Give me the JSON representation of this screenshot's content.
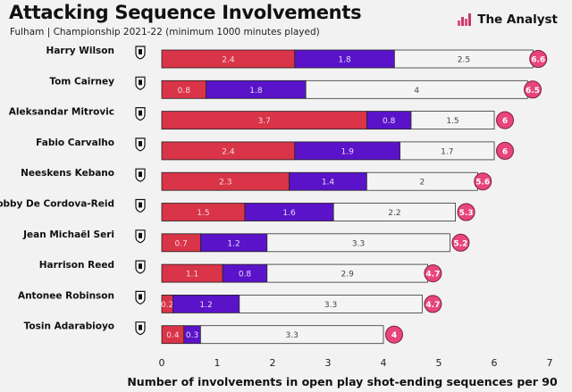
{
  "header": {
    "title": "Attacking Sequence Involvements",
    "subtitle": "Fulham | Championship 2021-22 (minimum 1000 minutes played)",
    "brand": "The Analyst"
  },
  "colors": {
    "segment1": "#d93448",
    "segment2": "#5a13c8",
    "segment3": "#f4f4f4",
    "total_badge": "#e8457e",
    "badge_border": "#7a1f3d"
  },
  "chart_data": {
    "type": "bar",
    "orientation": "horizontal",
    "stacked": true,
    "title": "Attacking Sequence Involvements",
    "xlabel": "Number of involvements in open play shot-ending sequences per 90",
    "ylabel": "",
    "xlim": [
      0,
      7
    ],
    "xticks": [
      0,
      1,
      2,
      3,
      4,
      5,
      6,
      7
    ],
    "xtick_labels": [
      "0",
      "1",
      "2",
      "3",
      "4",
      "5",
      "6",
      "7"
    ],
    "categories": [
      "Harry Wilson",
      "Tom Cairney",
      "Aleksandar Mitrovic",
      "Fabio Carvalho",
      "Neeskens Kebano",
      "Bobby De Cordova-Reid",
      "Jean Michaël Seri",
      "Harrison Reed",
      "Antonee Robinson",
      "Tosin Adarabioyo"
    ],
    "series": [
      {
        "name": "segment1",
        "values": [
          2.4,
          0.8,
          3.7,
          2.4,
          2.3,
          1.5,
          0.7,
          1.1,
          0.2,
          0.4
        ]
      },
      {
        "name": "segment2",
        "values": [
          1.8,
          1.8,
          0.8,
          1.9,
          1.4,
          1.6,
          1.2,
          0.8,
          1.2,
          0.3
        ]
      },
      {
        "name": "segment3",
        "values": [
          2.5,
          4,
          1.5,
          1.7,
          2,
          2.2,
          3.3,
          2.9,
          3.3,
          3.3
        ]
      }
    ],
    "totals": [
      "6.6",
      "6.5",
      "6",
      "6",
      "5.6",
      "5.3",
      "5.2",
      "4.7",
      "4.7",
      "4"
    ],
    "total_values": [
      6.6,
      6.5,
      6,
      6,
      5.6,
      5.3,
      5.2,
      4.7,
      4.7,
      4
    ],
    "grid": false
  }
}
